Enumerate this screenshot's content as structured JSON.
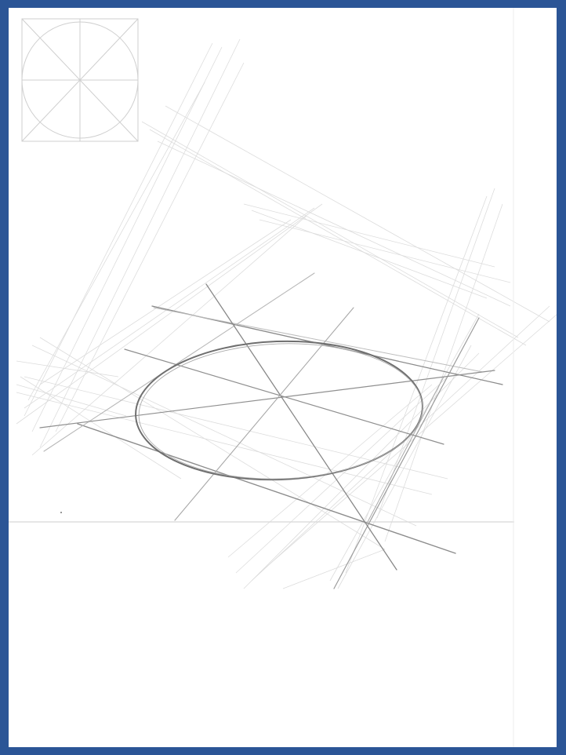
{
  "colors": {
    "frame": "#2b5596",
    "canvas": "#ffffff",
    "construction_line": "#c8c8c8",
    "strong_line": "#777777",
    "ellipse": "#6a6a6a",
    "reference_square": "#cfcfcf"
  },
  "elements": {
    "reference_diagram": "circle-in-square-reference-icon",
    "main_sketch": "perspective-ellipse-construction",
    "horizon": "horizon-line"
  }
}
